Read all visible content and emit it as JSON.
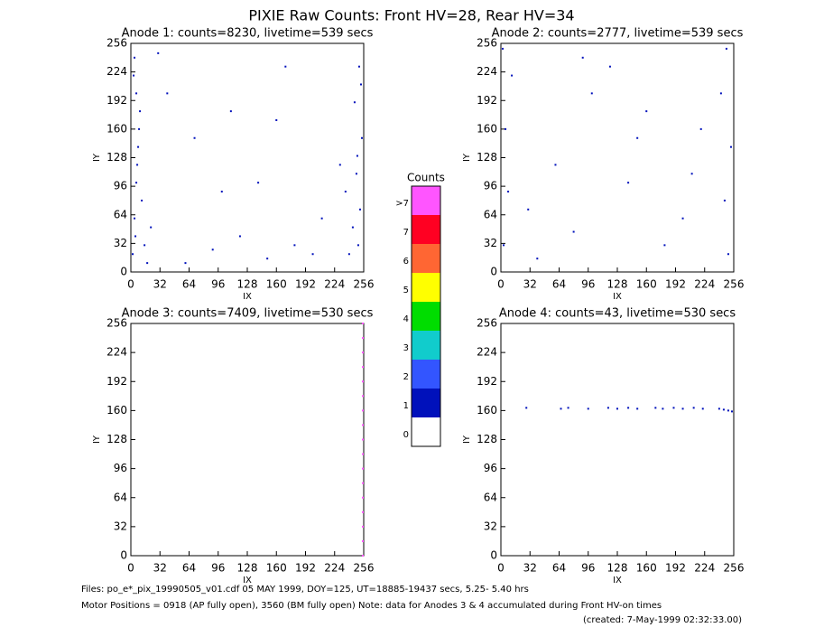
{
  "title": "PIXIE Raw Counts:  Front HV=28, Rear HV=34",
  "colorbar": {
    "title": "Counts",
    "labels": [
      ">7",
      "7",
      "6",
      "5",
      "4",
      "3",
      "2",
      "1",
      "0"
    ],
    "colors": [
      "#ff55ff",
      "#ff0022",
      "#ff6633",
      "#ffff00",
      "#00dd00",
      "#11cccc",
      "#3355ff",
      "#0011bb",
      "#ffffff"
    ]
  },
  "footer": [
    "Files: po_e*_pix_19990505_v01.cdf    05 MAY 1999, DOY=125, UT=18885-19437 secs,  5.25- 5.40 hrs",
    "Motor Positions = 0918 (AP fully open), 3560 (BM fully open)    Note: data for Anodes 3 & 4 accumulated during Front HV-on times",
    "(created:  7-May-1999 02:32:33.00)"
  ],
  "chart_data": [
    {
      "type": "scatter",
      "title": "Anode 1: counts=8230, livetime=539 secs",
      "xlabel": "IX",
      "ylabel": "IY",
      "xlim": [
        0,
        256
      ],
      "ylim": [
        0,
        256
      ],
      "xticks": [
        0,
        32,
        64,
        96,
        128,
        160,
        192,
        224,
        256
      ],
      "yticks": [
        0,
        32,
        64,
        96,
        128,
        160,
        192,
        224,
        256
      ],
      "color": "#0011bb",
      "x": [
        2,
        4,
        6,
        8,
        10,
        3,
        5,
        7,
        12,
        15,
        9,
        18,
        22,
        4,
        6,
        250,
        252,
        248,
        254,
        246,
        251,
        244,
        240,
        253,
        249,
        236,
        60,
        90,
        120,
        150,
        180,
        200,
        40,
        70,
        110,
        140,
        170,
        210,
        230,
        30,
        100,
        160
      ],
      "y": [
        20,
        60,
        100,
        140,
        180,
        220,
        40,
        120,
        80,
        30,
        160,
        10,
        50,
        240,
        200,
        30,
        70,
        110,
        150,
        190,
        230,
        50,
        20,
        210,
        130,
        90,
        10,
        25,
        40,
        15,
        30,
        20,
        200,
        150,
        180,
        100,
        230,
        60,
        120,
        245,
        90,
        170
      ]
    },
    {
      "type": "scatter",
      "title": "Anode 2: counts=2777, livetime=539 secs",
      "xlabel": "IX",
      "ylabel": "IY",
      "xlim": [
        0,
        256
      ],
      "ylim": [
        0,
        256
      ],
      "xticks": [
        0,
        32,
        64,
        96,
        128,
        160,
        192,
        224,
        256
      ],
      "yticks": [
        0,
        32,
        64,
        96,
        128,
        160,
        192,
        224,
        256
      ],
      "color": "#0011bb",
      "x": [
        3,
        8,
        5,
        12,
        2,
        250,
        246,
        253,
        242,
        248,
        40,
        80,
        120,
        160,
        200,
        60,
        100,
        140,
        180,
        220,
        30,
        90,
        150,
        210
      ],
      "y": [
        30,
        90,
        160,
        220,
        250,
        20,
        80,
        140,
        200,
        250,
        15,
        45,
        230,
        180,
        60,
        120,
        200,
        100,
        30,
        160,
        70,
        240,
        150,
        110
      ]
    },
    {
      "type": "scatter",
      "title": "Anode 3: counts=7409, livetime=530 secs",
      "xlabel": "IX",
      "ylabel": "IY",
      "xlim": [
        0,
        256
      ],
      "ylim": [
        0,
        256
      ],
      "xticks": [
        0,
        32,
        64,
        96,
        128,
        160,
        192,
        224,
        256
      ],
      "yticks": [
        0,
        32,
        64,
        96,
        128,
        160,
        192,
        224,
        256
      ],
      "color": "#ff55ff",
      "x": [
        255,
        255,
        255,
        255,
        255,
        255,
        255,
        255,
        255,
        255,
        255,
        255,
        255,
        255,
        255,
        255,
        255
      ],
      "y": [
        0,
        16,
        32,
        48,
        64,
        80,
        96,
        112,
        128,
        144,
        160,
        176,
        192,
        208,
        224,
        240,
        256
      ]
    },
    {
      "type": "scatter",
      "title": "Anode 4: counts=43, livetime=530 secs",
      "xlabel": "IX",
      "ylabel": "IY",
      "xlim": [
        0,
        256
      ],
      "ylim": [
        0,
        256
      ],
      "xticks": [
        0,
        32,
        64,
        96,
        128,
        160,
        192,
        224,
        256
      ],
      "yticks": [
        0,
        32,
        64,
        96,
        128,
        160,
        192,
        224,
        256
      ],
      "color": "#0011bb",
      "x": [
        28,
        66,
        74,
        96,
        118,
        128,
        140,
        150,
        170,
        178,
        190,
        200,
        212,
        222,
        240,
        245,
        250,
        254
      ],
      "y": [
        163,
        162,
        163,
        162,
        163,
        162,
        163,
        162,
        163,
        162,
        163,
        162,
        163,
        162,
        162,
        161,
        160,
        159
      ]
    }
  ]
}
